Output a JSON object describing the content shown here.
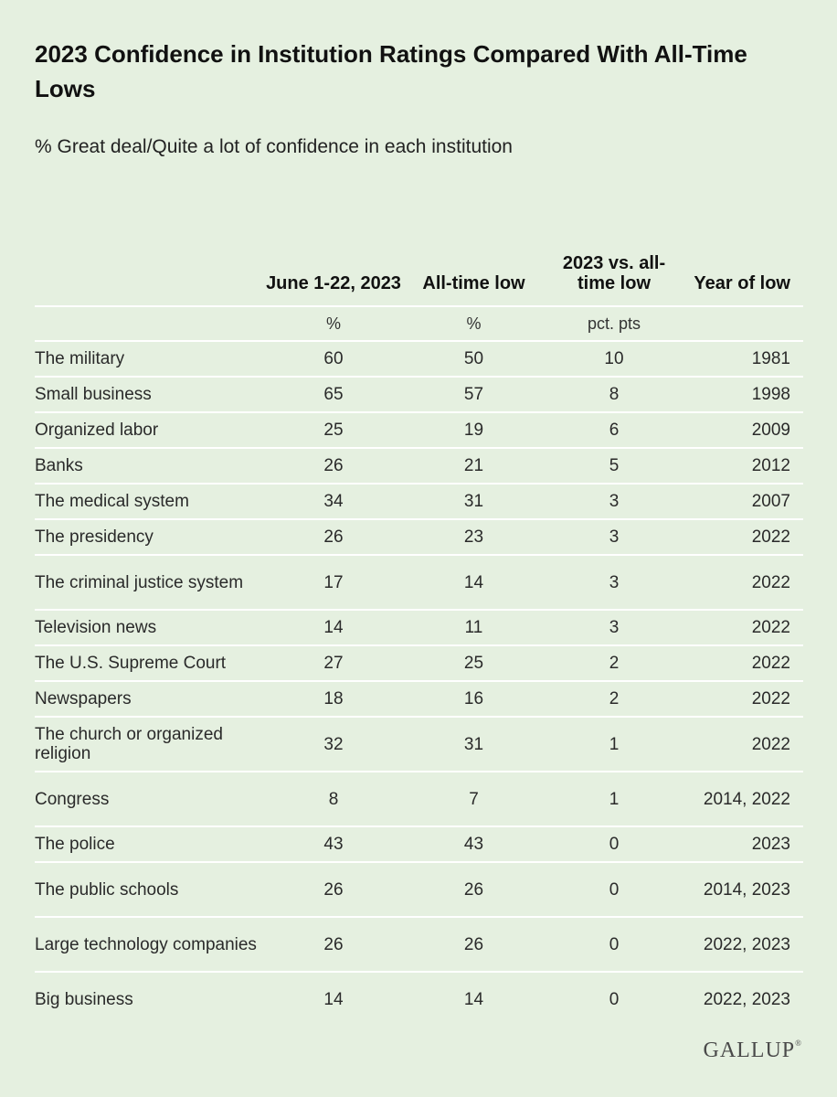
{
  "chart_data": {
    "type": "table",
    "title": "2023 Confidence in Institution Ratings Compared With All-Time Lows",
    "subtitle": "% Great deal/Quite a lot of confidence in each institution",
    "columns": [
      "",
      "June 1-22, 2023",
      "All-time low",
      "2023 vs. all-time low",
      "Year of low"
    ],
    "units": [
      "",
      "%",
      "%",
      "pct. pts",
      ""
    ],
    "rows": [
      {
        "institution": "The military",
        "june_2023": "60",
        "all_time_low": "50",
        "diff": "10",
        "year_of_low": "1981"
      },
      {
        "institution": "Small business",
        "june_2023": "65",
        "all_time_low": "57",
        "diff": "8",
        "year_of_low": "1998"
      },
      {
        "institution": "Organized labor",
        "june_2023": "25",
        "all_time_low": "19",
        "diff": "6",
        "year_of_low": "2009"
      },
      {
        "institution": "Banks",
        "june_2023": "26",
        "all_time_low": "21",
        "diff": "5",
        "year_of_low": "2012"
      },
      {
        "institution": "The medical system",
        "june_2023": "34",
        "all_time_low": "31",
        "diff": "3",
        "year_of_low": "2007"
      },
      {
        "institution": "The presidency",
        "june_2023": "26",
        "all_time_low": "23",
        "diff": "3",
        "year_of_low": "2022"
      },
      {
        "institution": "The criminal justice system",
        "june_2023": "17",
        "all_time_low": "14",
        "diff": "3",
        "year_of_low": "2022"
      },
      {
        "institution": "Television news",
        "june_2023": "14",
        "all_time_low": "11",
        "diff": "3",
        "year_of_low": "2022"
      },
      {
        "institution": "The U.S. Supreme Court",
        "june_2023": "27",
        "all_time_low": "25",
        "diff": "2",
        "year_of_low": "2022"
      },
      {
        "institution": "Newspapers",
        "june_2023": "18",
        "all_time_low": "16",
        "diff": "2",
        "year_of_low": "2022"
      },
      {
        "institution": "The church or organized religion",
        "june_2023": "32",
        "all_time_low": "31",
        "diff": "1",
        "year_of_low": "2022"
      },
      {
        "institution": "Congress",
        "june_2023": "8",
        "all_time_low": "7",
        "diff": "1",
        "year_of_low": "2014, 2022"
      },
      {
        "institution": "The police",
        "june_2023": "43",
        "all_time_low": "43",
        "diff": "0",
        "year_of_low": "2023"
      },
      {
        "institution": "The public schools",
        "june_2023": "26",
        "all_time_low": "26",
        "diff": "0",
        "year_of_low": "2014, 2023"
      },
      {
        "institution": "Large technology companies",
        "june_2023": "26",
        "all_time_low": "26",
        "diff": "0",
        "year_of_low": "2022, 2023"
      },
      {
        "institution": "Big business",
        "june_2023": "14",
        "all_time_low": "14",
        "diff": "0",
        "year_of_low": "2022, 2023"
      }
    ]
  },
  "logo": {
    "text": "GALLUP",
    "mark": "®"
  },
  "colors": {
    "background": "#e5f0e0",
    "divider": "#ffffff",
    "text": "#1e1e1e"
  }
}
